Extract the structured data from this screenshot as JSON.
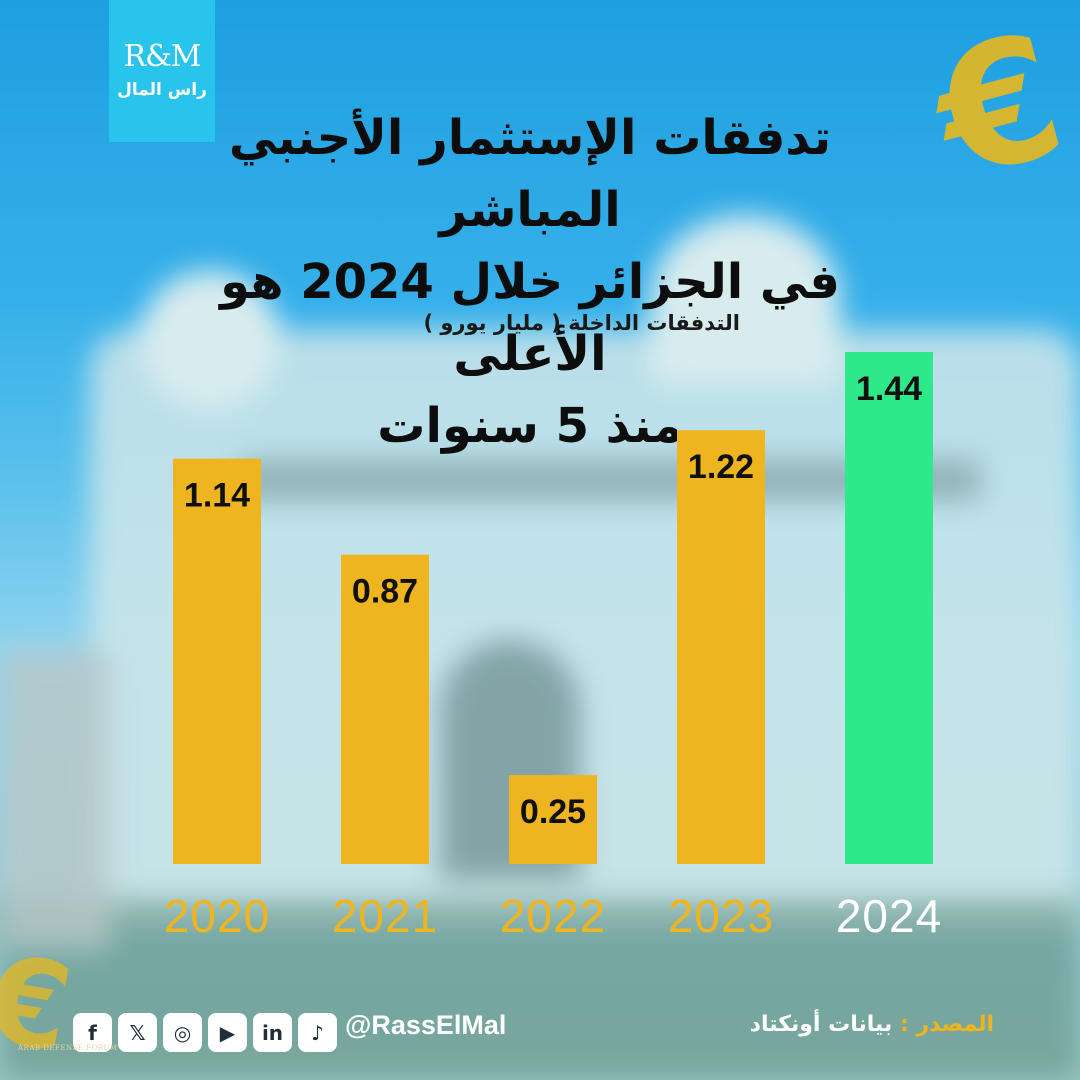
{
  "logo": {
    "top": "R&M",
    "bottom": "راس المال"
  },
  "title": "تدفقات الإستثمار الأجنبي المباشر\nفي الجزائر خلال 2024 هو الأعلى\nمنذ 5 سنوات",
  "chart_data": {
    "type": "bar",
    "title": "تدفقات الإستثمار الأجنبي المباشر في الجزائر خلال 2024 هو الأعلى منذ 5 سنوات",
    "ylabel": "التدفقات الداخلة ( مليار يورو )",
    "categories": [
      "2020",
      "2021",
      "2022",
      "2023",
      "2024"
    ],
    "values": [
      1.14,
      0.87,
      0.25,
      1.22,
      1.44
    ],
    "value_labels": [
      "1.14",
      "0.87",
      "0.25",
      "1.22",
      "1.44"
    ],
    "ylim": [
      0,
      1.44
    ],
    "grid": false,
    "colors": {
      "default": "#efb521",
      "highlight": "#2ee98a"
    },
    "highlight_category": "2024"
  },
  "footer": {
    "source_label": "المصدر :",
    "source_value": "بيانات أونكتاد",
    "handle": "@RassElMal",
    "forum_mark": "ARAB DEFENSE FORUM",
    "social_icons": [
      "facebook-icon",
      "x-icon",
      "instagram-icon",
      "youtube-icon",
      "linkedin-icon",
      "tiktok-icon"
    ]
  }
}
